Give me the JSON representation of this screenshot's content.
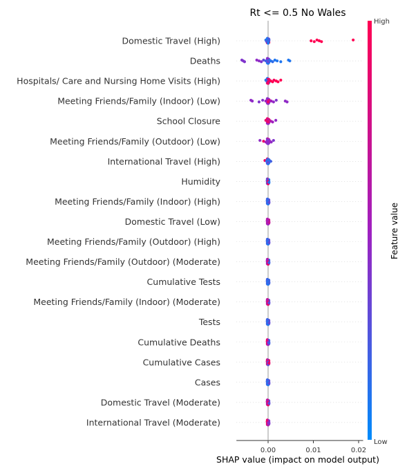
{
  "chart_data": {
    "type": "scatter",
    "subtype": "shap-beeswarm",
    "title": "Rt <= 0.5 No Wales",
    "xlabel": "SHAP value (impact on model output)",
    "xlim": [
      -0.007,
      0.021
    ],
    "xticks": [
      {
        "value": 0.0,
        "label": "0.00"
      },
      {
        "value": 0.01,
        "label": "0.01"
      },
      {
        "value": 0.02,
        "label": "0.02"
      }
    ],
    "colorbar": {
      "title": "Feature value",
      "high_label": "High",
      "low_label": "Low",
      "high_color": "#ff0052",
      "mid_color": "#a020c0",
      "low_color": "#008bfb"
    },
    "features": [
      {
        "name": "Domestic Travel (High)",
        "points": [
          [
            -0.0005,
            0.1
          ],
          [
            -0.0004,
            0.2
          ],
          [
            -0.0003,
            0.3
          ],
          [
            -0.0002,
            0.1
          ],
          [
            0.0,
            0.2
          ],
          [
            0.0001,
            0.1
          ],
          [
            0.0002,
            0.2
          ],
          [
            0.0095,
            1.0
          ],
          [
            0.0102,
            1.0
          ],
          [
            0.0108,
            1.0
          ],
          [
            0.0113,
            1.0
          ],
          [
            0.0118,
            1.0
          ],
          [
            0.0188,
            1.0
          ]
        ]
      },
      {
        "name": "Deaths",
        "points": [
          [
            -0.0058,
            0.4
          ],
          [
            -0.0055,
            0.4
          ],
          [
            -0.0052,
            0.4
          ],
          [
            -0.0025,
            0.45
          ],
          [
            -0.002,
            0.45
          ],
          [
            -0.0015,
            0.4
          ],
          [
            -0.001,
            0.3
          ],
          [
            -0.0005,
            0.2
          ],
          [
            0.0,
            0.3
          ],
          [
            0.0003,
            0.2
          ],
          [
            0.0006,
            0.1
          ],
          [
            0.001,
            0.15
          ],
          [
            0.0015,
            0.1
          ],
          [
            0.002,
            0.1
          ],
          [
            0.0028,
            0.1
          ],
          [
            0.0045,
            0.1
          ],
          [
            0.0048,
            0.1
          ]
        ]
      },
      {
        "name": "Hospitals/ Care and Nursing Home Visits (High)",
        "points": [
          [
            -0.0005,
            0.1
          ],
          [
            -0.0003,
            0.2
          ],
          [
            0.0,
            0.9
          ],
          [
            0.0003,
            0.9
          ],
          [
            0.0006,
            1.0
          ],
          [
            0.001,
            1.0
          ],
          [
            0.0013,
            0.95
          ],
          [
            0.0018,
            1.0
          ],
          [
            0.0022,
            1.0
          ],
          [
            0.0028,
            1.0
          ]
        ]
      },
      {
        "name": "Meeting Friends/Family (Indoor) (Low)",
        "points": [
          [
            -0.0038,
            0.45
          ],
          [
            -0.0035,
            0.45
          ],
          [
            -0.002,
            0.4
          ],
          [
            -0.0012,
            0.4
          ],
          [
            -0.0005,
            0.5
          ],
          [
            0.0,
            0.9
          ],
          [
            0.0003,
            0.8
          ],
          [
            0.0007,
            0.5
          ],
          [
            0.0012,
            0.45
          ],
          [
            0.0018,
            0.4
          ],
          [
            0.0038,
            0.45
          ],
          [
            0.0042,
            0.45
          ]
        ]
      },
      {
        "name": "School Closure",
        "points": [
          [
            -0.0005,
            0.9
          ],
          [
            -0.0002,
            0.8
          ],
          [
            0.0,
            0.9
          ],
          [
            0.0003,
            0.8
          ],
          [
            0.0006,
            0.6
          ],
          [
            0.001,
            0.5
          ],
          [
            0.0017,
            0.45
          ]
        ]
      },
      {
        "name": "Meeting Friends/Family (Outdoor) (Low)",
        "points": [
          [
            -0.0018,
            0.45
          ],
          [
            -0.001,
            0.9
          ],
          [
            -0.0005,
            0.5
          ],
          [
            0.0,
            0.4
          ],
          [
            0.0004,
            0.5
          ],
          [
            0.0007,
            0.45
          ],
          [
            0.0012,
            0.4
          ]
        ]
      },
      {
        "name": "International Travel (High)",
        "points": [
          [
            -0.0007,
            0.9
          ],
          [
            -0.0003,
            0.1
          ],
          [
            0.0,
            0.3
          ],
          [
            0.0003,
            0.1
          ],
          [
            0.0006,
            0.2
          ]
        ]
      },
      {
        "name": "Humidity",
        "points": [
          [
            -0.0002,
            0.3
          ],
          [
            0.0,
            0.9
          ],
          [
            0.0002,
            0.1
          ]
        ]
      },
      {
        "name": "Meeting Friends/Family (Indoor) (High)",
        "points": [
          [
            -0.0002,
            0.2
          ],
          [
            0.0,
            0.1
          ],
          [
            0.0002,
            0.3
          ]
        ]
      },
      {
        "name": "Domestic Travel (Low)",
        "points": [
          [
            -0.0002,
            0.6
          ],
          [
            0.0,
            0.5
          ],
          [
            0.0002,
            0.7
          ]
        ]
      },
      {
        "name": "Meeting Friends/Family (Outdoor) (High)",
        "points": [
          [
            -0.0002,
            0.2
          ],
          [
            0.0,
            0.1
          ],
          [
            0.0002,
            0.3
          ]
        ]
      },
      {
        "name": "Meeting Friends/Family (Outdoor) (Moderate)",
        "points": [
          [
            -0.0002,
            0.5
          ],
          [
            0.0,
            0.9
          ],
          [
            0.0002,
            0.2
          ]
        ]
      },
      {
        "name": "Cumulative Tests",
        "points": [
          [
            -0.0002,
            0.2
          ],
          [
            0.0,
            0.1
          ],
          [
            0.0002,
            0.2
          ]
        ]
      },
      {
        "name": "Meeting Friends/Family (Indoor) (Moderate)",
        "points": [
          [
            -0.0002,
            0.6
          ],
          [
            0.0,
            0.9
          ],
          [
            0.0002,
            0.3
          ]
        ]
      },
      {
        "name": "Tests",
        "points": [
          [
            -0.0002,
            0.2
          ],
          [
            0.0,
            0.1
          ],
          [
            0.0002,
            0.3
          ]
        ]
      },
      {
        "name": "Cumulative Deaths",
        "points": [
          [
            -0.0002,
            0.9
          ],
          [
            0.0,
            0.5
          ],
          [
            0.0002,
            0.2
          ]
        ]
      },
      {
        "name": "Cumulative Cases",
        "points": [
          [
            -0.0002,
            0.8
          ],
          [
            0.0,
            0.3
          ],
          [
            0.0002,
            0.9
          ]
        ]
      },
      {
        "name": "Cases",
        "points": [
          [
            -0.0002,
            0.2
          ],
          [
            0.0,
            0.1
          ],
          [
            0.0002,
            0.3
          ]
        ]
      },
      {
        "name": "Domestic Travel (Moderate)",
        "points": [
          [
            -0.0002,
            0.6
          ],
          [
            0.0,
            0.9
          ],
          [
            0.0002,
            0.3
          ]
        ]
      },
      {
        "name": "International Travel (Moderate)",
        "points": [
          [
            -0.0002,
            0.9
          ],
          [
            0.0,
            0.6
          ],
          [
            0.0002,
            0.4
          ]
        ]
      }
    ]
  }
}
